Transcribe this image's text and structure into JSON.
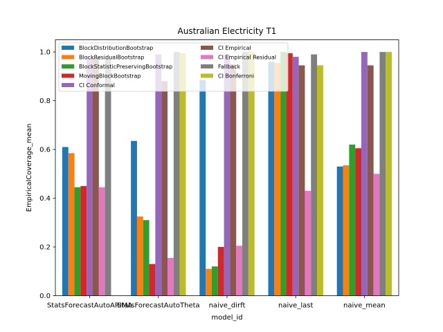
{
  "chart_data": {
    "type": "bar",
    "title": "Australian Electricity T1",
    "xlabel": "model_id",
    "ylabel": "EmpiricalCoverage_mean",
    "ylim": [
      0,
      1.05
    ],
    "yticks": [
      "0.0",
      "0.2",
      "0.4",
      "0.6",
      "0.8",
      "1.0"
    ],
    "grid": false,
    "legend_position": "top-left",
    "categories": [
      "StatsForecastAutoARIMA",
      "StatsForecastAutoTheta",
      "naive_dirft",
      "naive_last",
      "naive_mean"
    ],
    "series": [
      {
        "name": "BlockDistributionBootstrap",
        "color": "#1f77b4",
        "values": [
          0.61,
          0.635,
          0.885,
          0.96,
          0.53
        ]
      },
      {
        "name": "BlockResidualBootstrap",
        "color": "#ff7f0e",
        "values": [
          0.585,
          0.325,
          0.11,
          0.955,
          0.535
        ]
      },
      {
        "name": "BlockStatisticPreservingBootstrap",
        "color": "#2ca02c",
        "values": [
          0.445,
          0.31,
          0.12,
          1.0,
          0.62
        ]
      },
      {
        "name": "MovingBlockBootstrap",
        "color": "#d62728",
        "values": [
          0.45,
          0.13,
          0.2,
          0.995,
          0.605
        ]
      },
      {
        "name": "CI Conformal",
        "color": "#9467bd",
        "values": [
          0.975,
          0.99,
          0.99,
          0.98,
          1.0
        ]
      },
      {
        "name": "CI Empirical",
        "color": "#8c564b",
        "values": [
          0.975,
          0.88,
          0.95,
          0.945,
          0.945
        ]
      },
      {
        "name": "CI Empirical Residual",
        "color": "#e377c2",
        "values": [
          0.445,
          0.155,
          0.205,
          0.43,
          0.5
        ]
      },
      {
        "name": "Fallback",
        "color": "#7f7f7f",
        "values": [
          0.975,
          1.0,
          1.0,
          0.99,
          1.0
        ]
      },
      {
        "name": "CI Bonferroni",
        "color": "#bcbd22",
        "values": [
          null,
          0.995,
          1.0,
          0.945,
          1.0
        ]
      }
    ]
  }
}
